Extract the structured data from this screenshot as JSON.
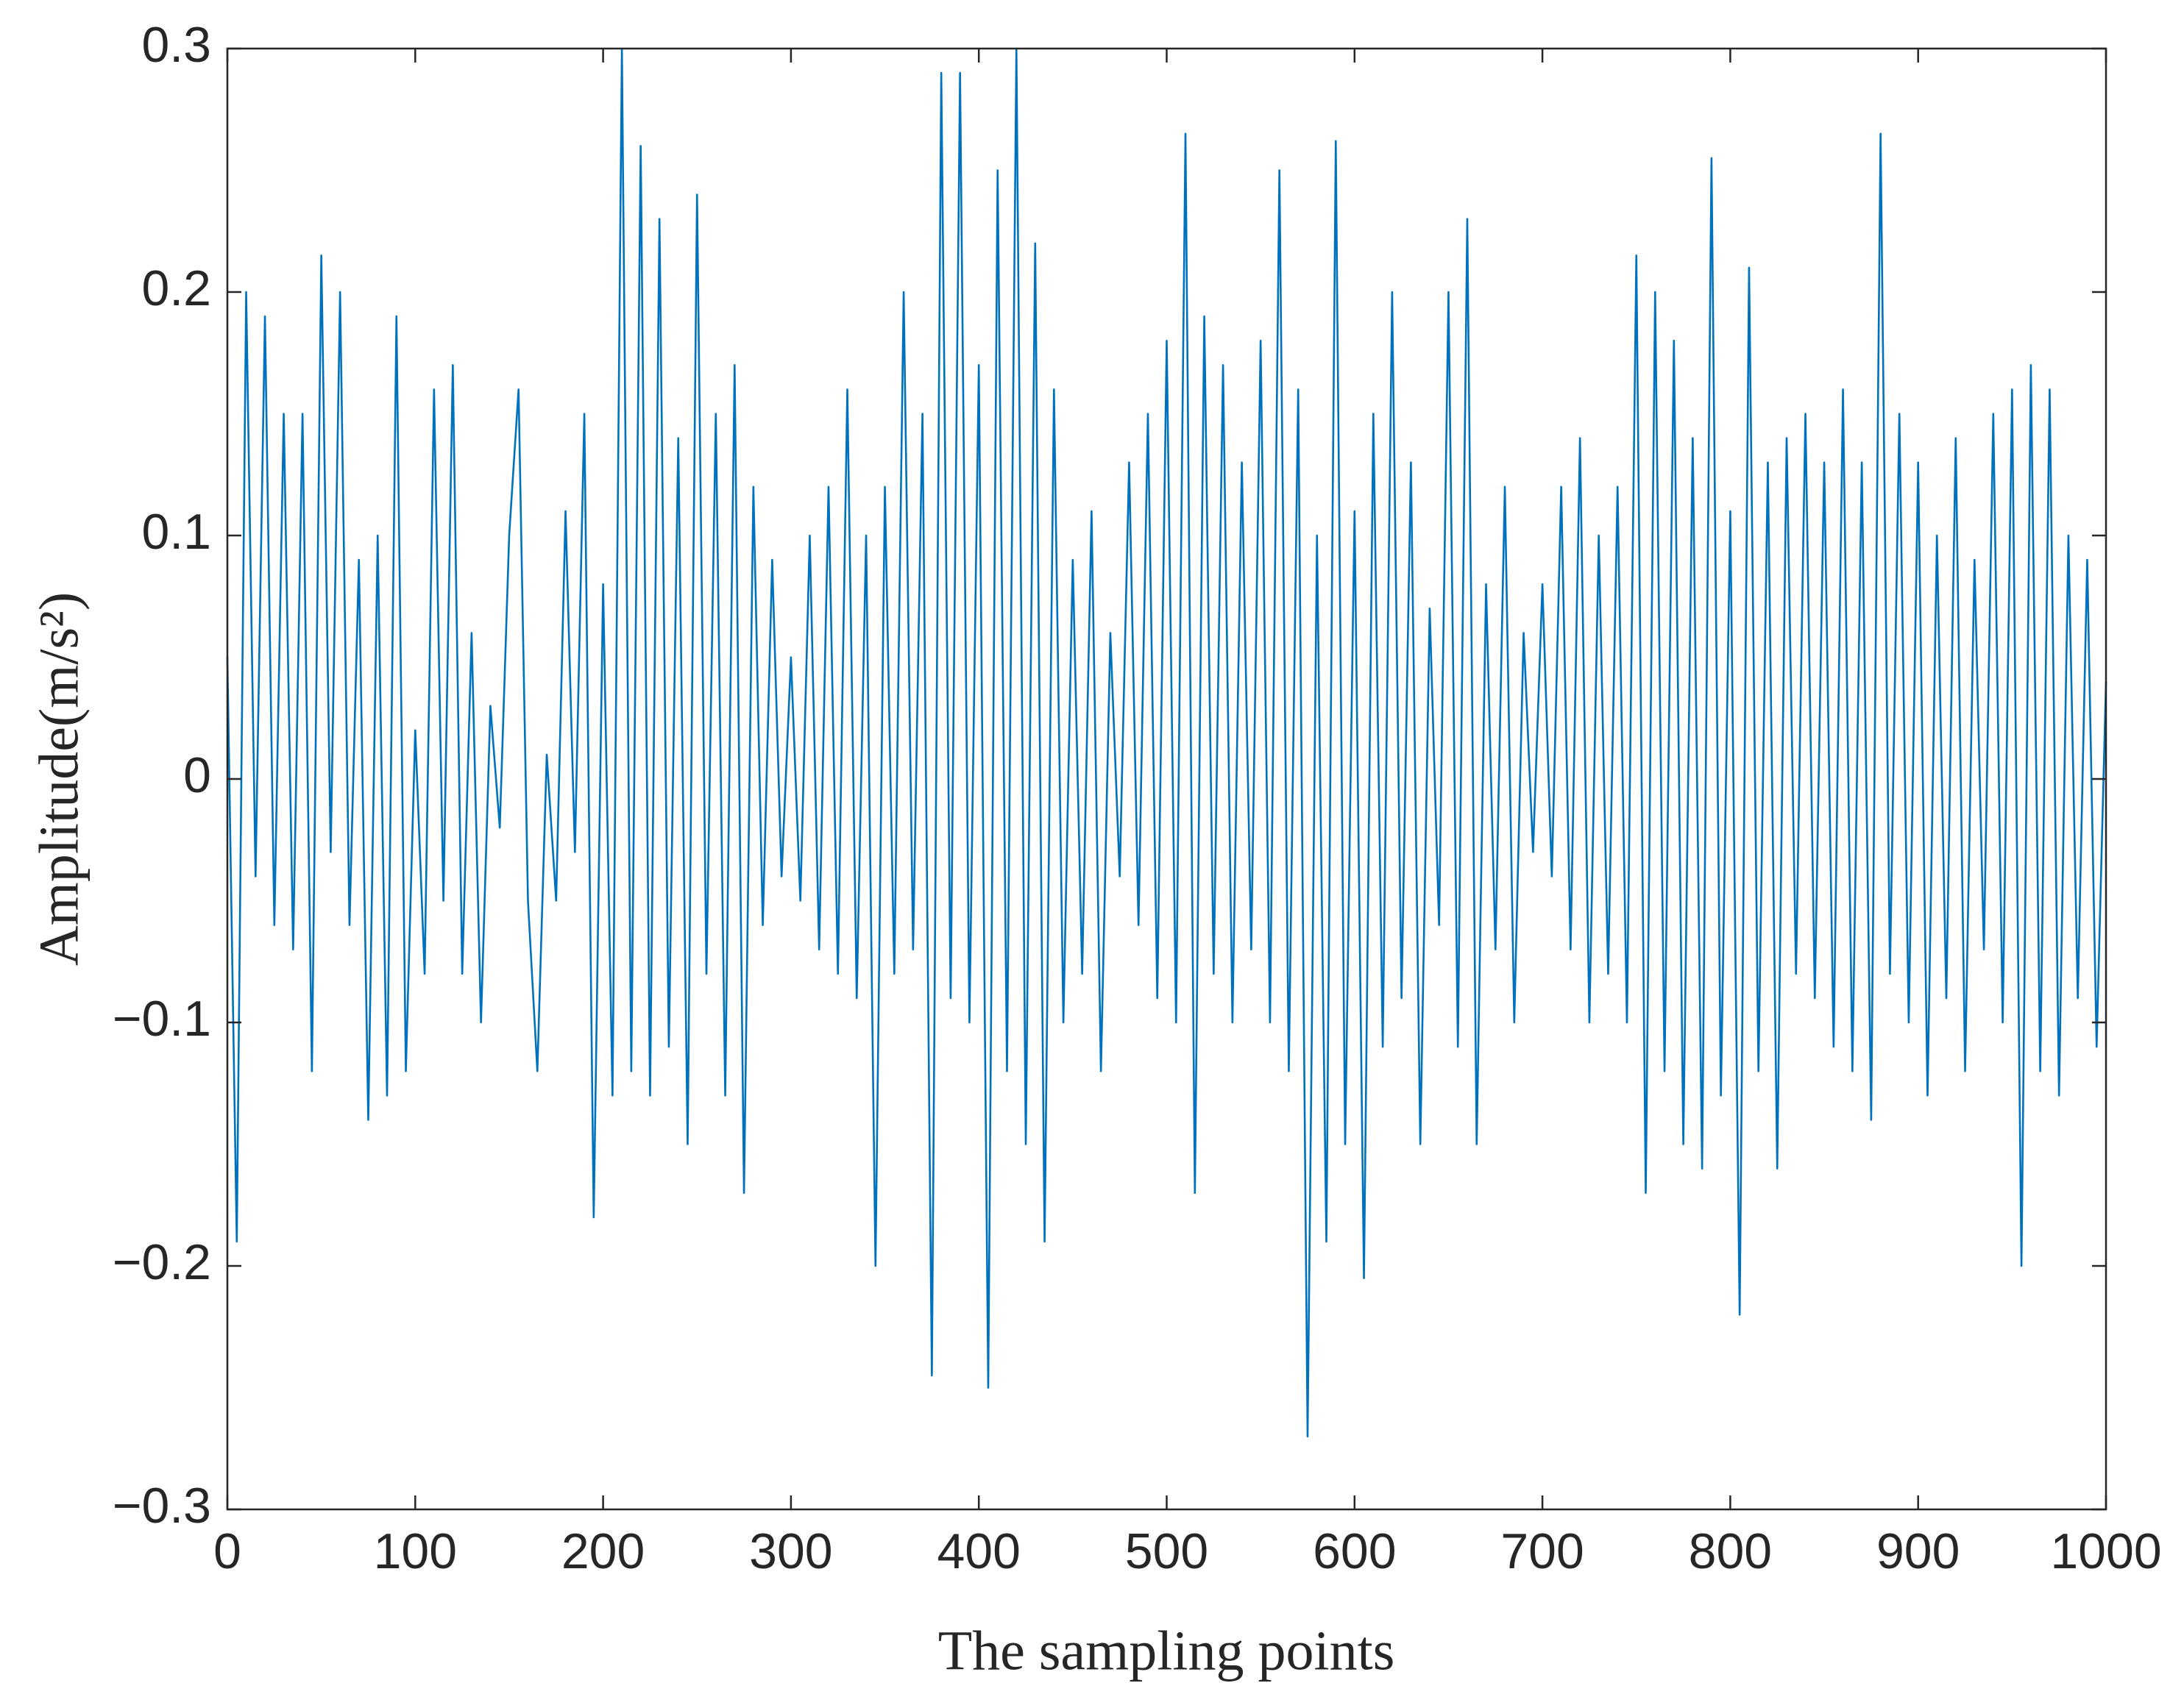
{
  "chart_data": {
    "type": "line",
    "xlabel": "The sampling points",
    "ylabel": "Amplitude(m/s²)",
    "color": "#0072bd",
    "xlim": [
      0,
      1000
    ],
    "ylim": [
      -0.3,
      0.3
    ],
    "xticks": [
      0,
      100,
      200,
      300,
      400,
      500,
      600,
      700,
      800,
      900,
      1000
    ],
    "yticks": [
      {
        "value": -0.3,
        "label": "−0.3"
      },
      {
        "value": -0.2,
        "label": "−0.2"
      },
      {
        "value": -0.1,
        "label": "−0.1"
      },
      0,
      0.1,
      0.2,
      0.3
    ],
    "grid": false,
    "x": [
      0,
      5,
      10,
      15,
      20,
      25,
      30,
      35,
      40,
      45,
      50,
      55,
      60,
      65,
      70,
      75,
      80,
      85,
      90,
      95,
      100,
      105,
      110,
      115,
      120,
      125,
      130,
      135,
      140,
      145,
      150,
      155,
      160,
      165,
      170,
      175,
      180,
      185,
      190,
      195,
      200,
      205,
      210,
      215,
      220,
      225,
      230,
      235,
      240,
      245,
      250,
      255,
      260,
      265,
      270,
      275,
      280,
      285,
      290,
      295,
      300,
      305,
      310,
      315,
      320,
      325,
      330,
      335,
      340,
      345,
      350,
      355,
      360,
      365,
      370,
      375,
      380,
      385,
      390,
      395,
      400,
      405,
      410,
      415,
      420,
      425,
      430,
      435,
      440,
      445,
      450,
      455,
      460,
      465,
      470,
      475,
      480,
      485,
      490,
      495,
      500,
      505,
      510,
      515,
      520,
      525,
      530,
      535,
      540,
      545,
      550,
      555,
      560,
      565,
      570,
      575,
      580,
      585,
      590,
      595,
      600,
      605,
      610,
      615,
      620,
      625,
      630,
      635,
      640,
      645,
      650,
      655,
      660,
      665,
      670,
      675,
      680,
      685,
      690,
      695,
      700,
      705,
      710,
      715,
      720,
      725,
      730,
      735,
      740,
      745,
      750,
      755,
      760,
      765,
      770,
      775,
      780,
      785,
      790,
      795,
      800,
      805,
      810,
      815,
      820,
      825,
      830,
      835,
      840,
      845,
      850,
      855,
      860,
      865,
      870,
      875,
      880,
      885,
      890,
      895,
      900,
      905,
      910,
      915,
      920,
      925,
      930,
      935,
      940,
      945,
      950,
      955,
      960,
      965,
      970,
      975,
      980,
      985,
      990,
      995,
      1000
    ],
    "values": [
      0.05,
      -0.19,
      0.2,
      -0.04,
      0.19,
      -0.06,
      0.15,
      -0.07,
      0.15,
      -0.12,
      0.215,
      -0.03,
      0.2,
      -0.06,
      0.09,
      -0.14,
      0.1,
      -0.13,
      0.19,
      -0.12,
      0.02,
      -0.08,
      0.16,
      -0.05,
      0.17,
      -0.08,
      0.06,
      -0.1,
      0.03,
      -0.02,
      0.1,
      0.16,
      -0.05,
      -0.12,
      0.01,
      -0.05,
      0.11,
      -0.03,
      0.15,
      -0.18,
      0.08,
      -0.13,
      0.3,
      -0.12,
      0.26,
      -0.13,
      0.23,
      -0.11,
      0.14,
      -0.15,
      0.24,
      -0.08,
      0.15,
      -0.13,
      0.17,
      -0.17,
      0.12,
      -0.06,
      0.09,
      -0.04,
      0.05,
      -0.05,
      0.1,
      -0.07,
      0.12,
      -0.08,
      0.16,
      -0.09,
      0.1,
      -0.2,
      0.12,
      -0.08,
      0.2,
      -0.07,
      0.15,
      -0.245,
      0.29,
      -0.09,
      0.29,
      -0.1,
      0.17,
      -0.25,
      0.25,
      -0.12,
      0.3,
      -0.15,
      0.22,
      -0.19,
      0.16,
      -0.1,
      0.09,
      -0.08,
      0.11,
      -0.12,
      0.06,
      -0.04,
      0.13,
      -0.06,
      0.15,
      -0.09,
      0.18,
      -0.1,
      0.265,
      -0.17,
      0.19,
      -0.08,
      0.17,
      -0.1,
      0.13,
      -0.07,
      0.18,
      -0.1,
      0.25,
      -0.12,
      0.16,
      -0.27,
      0.1,
      -0.19,
      0.262,
      -0.15,
      0.11,
      -0.205,
      0.15,
      -0.11,
      0.2,
      -0.09,
      0.13,
      -0.15,
      0.07,
      -0.06,
      0.2,
      -0.11,
      0.23,
      -0.15,
      0.08,
      -0.07,
      0.12,
      -0.1,
      0.06,
      -0.03,
      0.08,
      -0.04,
      0.12,
      -0.07,
      0.14,
      -0.1,
      0.1,
      -0.08,
      0.12,
      -0.1,
      0.215,
      -0.17,
      0.2,
      -0.12,
      0.18,
      -0.15,
      0.14,
      -0.16,
      0.255,
      -0.13,
      0.11,
      -0.22,
      0.21,
      -0.12,
      0.13,
      -0.16,
      0.14,
      -0.08,
      0.15,
      -0.09,
      0.13,
      -0.11,
      0.16,
      -0.12,
      0.13,
      -0.14,
      0.265,
      -0.08,
      0.15,
      -0.1,
      0.13,
      -0.13,
      0.1,
      -0.09,
      0.14,
      -0.12,
      0.09,
      -0.07,
      0.15,
      -0.1,
      0.16,
      -0.2,
      0.17,
      -0.12,
      0.16,
      -0.13,
      0.1,
      -0.09,
      0.09,
      -0.11,
      0.04
    ]
  }
}
